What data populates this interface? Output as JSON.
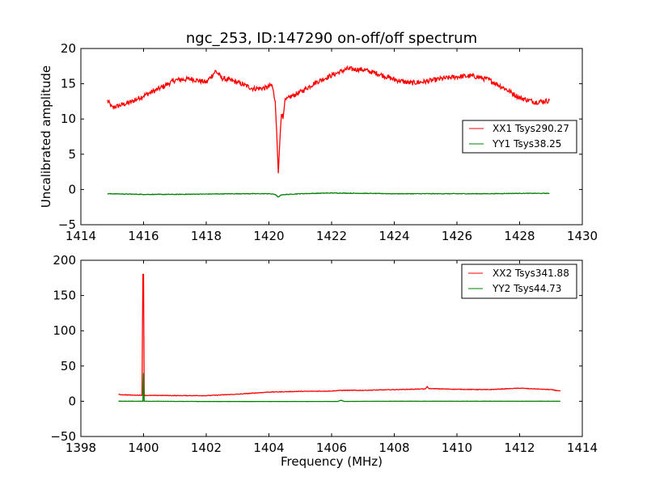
{
  "chart_data": [
    {
      "type": "line",
      "title": "ngc_253, ID:147290 on-off/off spectrum",
      "xlabel": "",
      "ylabel": "Uncalibrated amplitude",
      "xlim": [
        1414,
        1430
      ],
      "ylim": [
        -5,
        20
      ],
      "xticks": [
        1414,
        1416,
        1418,
        1420,
        1422,
        1424,
        1426,
        1428,
        1430
      ],
      "yticks": [
        -5,
        0,
        5,
        10,
        15,
        20
      ],
      "xtick_labels": [
        "1414",
        "1416",
        "1418",
        "1420",
        "1422",
        "1424",
        "1426",
        "1428",
        "1430"
      ],
      "ytick_labels": [
        "−5",
        "0",
        "5",
        "10",
        "15",
        "20"
      ],
      "legend_position": "center-right",
      "series": [
        {
          "name": "XX1 Tsys290.27",
          "color": "#ff0000",
          "x": [
            1414.85,
            1415.0,
            1415.3,
            1415.6,
            1416.0,
            1416.5,
            1417.0,
            1417.5,
            1418.0,
            1418.3,
            1418.5,
            1419.0,
            1419.5,
            1419.9,
            1420.1,
            1420.2,
            1420.25,
            1420.3,
            1420.35,
            1420.4,
            1420.45,
            1420.5,
            1420.7,
            1421.0,
            1421.5,
            1422.0,
            1422.5,
            1423.0,
            1423.5,
            1424.0,
            1424.5,
            1425.0,
            1425.5,
            1426.0,
            1426.5,
            1427.0,
            1427.5,
            1428.0,
            1428.5,
            1428.95
          ],
          "y": [
            12.6,
            11.6,
            12.0,
            12.4,
            13.3,
            14.3,
            15.5,
            15.7,
            15.2,
            16.8,
            15.8,
            15.2,
            14.3,
            14.4,
            14.8,
            12.5,
            8.0,
            2.3,
            7.0,
            11.0,
            10.0,
            12.5,
            13.2,
            13.8,
            15.2,
            16.2,
            17.1,
            17.0,
            16.4,
            15.6,
            15.1,
            15.3,
            15.7,
            16.0,
            16.1,
            15.6,
            14.4,
            13.0,
            12.4,
            12.6
          ]
        },
        {
          "name": "YY1 Tsys38.25",
          "color": "#008000",
          "x": [
            1414.85,
            1416.0,
            1417.0,
            1418.0,
            1419.0,
            1420.0,
            1420.2,
            1420.3,
            1420.4,
            1421.0,
            1422.0,
            1423.0,
            1424.0,
            1425.0,
            1426.0,
            1427.0,
            1428.0,
            1428.95
          ],
          "y": [
            -0.6,
            -0.7,
            -0.7,
            -0.65,
            -0.6,
            -0.6,
            -0.7,
            -1.1,
            -0.75,
            -0.6,
            -0.5,
            -0.55,
            -0.6,
            -0.6,
            -0.6,
            -0.6,
            -0.55,
            -0.55
          ]
        }
      ]
    },
    {
      "type": "line",
      "title": "",
      "xlabel": "Frequency (MHz)",
      "ylabel": "",
      "xlim": [
        1398,
        1414
      ],
      "ylim": [
        -50,
        200
      ],
      "xticks": [
        1398,
        1400,
        1402,
        1404,
        1406,
        1408,
        1410,
        1412,
        1414
      ],
      "yticks": [
        -50,
        0,
        50,
        100,
        150,
        200
      ],
      "xtick_labels": [
        "1398",
        "1400",
        "1402",
        "1404",
        "1406",
        "1408",
        "1410",
        "1412",
        "1414"
      ],
      "ytick_labels": [
        "−50",
        "0",
        "50",
        "100",
        "150",
        "200"
      ],
      "legend_position": "upper-right",
      "series": [
        {
          "name": "XX2 Tsys341.88",
          "color": "#ff0000",
          "x": [
            1399.2,
            1399.6,
            1399.95,
            1399.98,
            1400.0,
            1400.02,
            1400.05,
            1400.5,
            1401.0,
            1402.0,
            1403.0,
            1404.0,
            1405.0,
            1406.0,
            1406.3,
            1407.0,
            1408.0,
            1409.0,
            1409.05,
            1409.1,
            1410.0,
            1411.0,
            1412.0,
            1413.0,
            1413.3
          ],
          "y": [
            9.5,
            8.8,
            8.5,
            180,
            180,
            8.5,
            8.2,
            8.3,
            8.0,
            8.0,
            10.0,
            13.0,
            14.0,
            14.5,
            15.5,
            15.5,
            16.5,
            17.5,
            21.0,
            18.0,
            17.0,
            16.5,
            18.5,
            16.5,
            14.5
          ]
        },
        {
          "name": "YY2 Tsys44.73",
          "color": "#008000",
          "x": [
            1399.2,
            1399.98,
            1400.0,
            1400.02,
            1402.0,
            1404.0,
            1406.2,
            1406.3,
            1406.4,
            1408.0,
            1410.0,
            1412.0,
            1413.3
          ],
          "y": [
            0,
            0,
            40,
            0,
            -0.3,
            -0.3,
            -0.2,
            1.5,
            -0.2,
            0,
            0,
            0,
            0
          ]
        }
      ]
    }
  ]
}
